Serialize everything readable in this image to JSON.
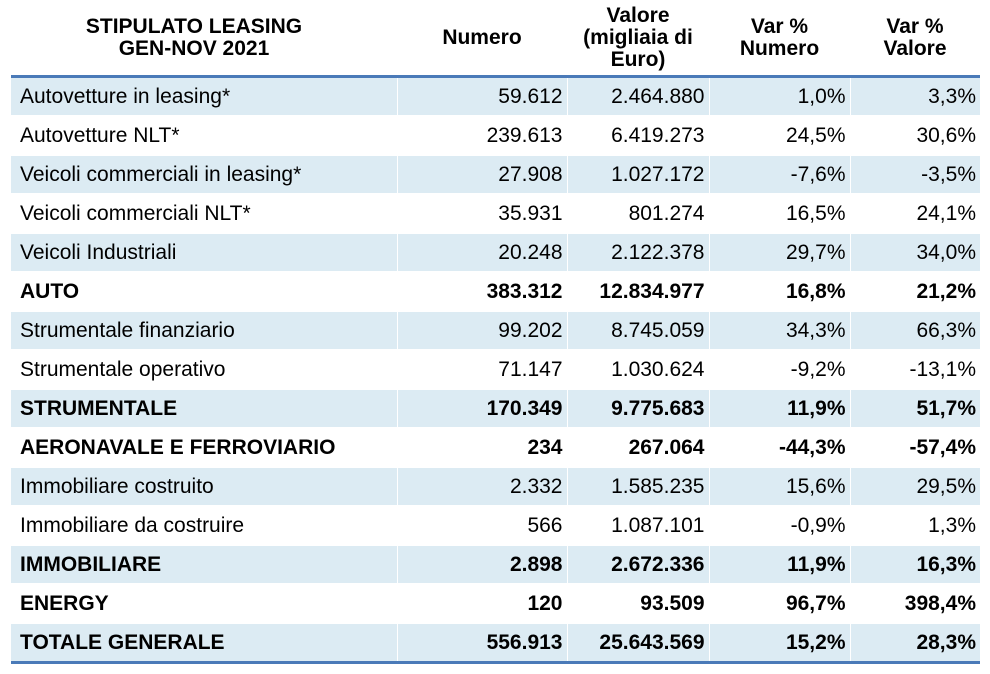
{
  "chart_data": {
    "type": "table",
    "columns": [
      "STIPULATO LEASING GEN-NOV 2021",
      "Numero",
      "Valore (migliaia di Euro)",
      "Var % Numero",
      "Var % Valore"
    ],
    "header_lines": [
      [
        "STIPULATO LEASING",
        "GEN-NOV 2021"
      ],
      [
        "Numero"
      ],
      [
        "Valore",
        "(migliaia di",
        "Euro)"
      ],
      [
        "Var %",
        "Numero"
      ],
      [
        "Var %",
        "Valore"
      ]
    ],
    "rows": [
      {
        "label": "Autovetture in leasing*",
        "numero": "59.612",
        "valore": "2.464.880",
        "var_numero": "1,0%",
        "var_valore": "3,3%",
        "bold": false,
        "shade": true
      },
      {
        "label": "Autovetture NLT*",
        "numero": "239.613",
        "valore": "6.419.273",
        "var_numero": "24,5%",
        "var_valore": "30,6%",
        "bold": false,
        "shade": false
      },
      {
        "label": "Veicoli commerciali in leasing*",
        "numero": "27.908",
        "valore": "1.027.172",
        "var_numero": "-7,6%",
        "var_valore": "-3,5%",
        "bold": false,
        "shade": true
      },
      {
        "label": "Veicoli commerciali NLT*",
        "numero": "35.931",
        "valore": "801.274",
        "var_numero": "16,5%",
        "var_valore": "24,1%",
        "bold": false,
        "shade": false
      },
      {
        "label": "Veicoli Industriali",
        "numero": "20.248",
        "valore": "2.122.378",
        "var_numero": "29,7%",
        "var_valore": "34,0%",
        "bold": false,
        "shade": true
      },
      {
        "label": "AUTO",
        "numero": "383.312",
        "valore": "12.834.977",
        "var_numero": "16,8%",
        "var_valore": "21,2%",
        "bold": true,
        "shade": false
      },
      {
        "label": "Strumentale finanziario",
        "numero": "99.202",
        "valore": "8.745.059",
        "var_numero": "34,3%",
        "var_valore": "66,3%",
        "bold": false,
        "shade": true
      },
      {
        "label": "Strumentale operativo",
        "numero": "71.147",
        "valore": "1.030.624",
        "var_numero": "-9,2%",
        "var_valore": "-13,1%",
        "bold": false,
        "shade": false
      },
      {
        "label": "STRUMENTALE",
        "numero": "170.349",
        "valore": "9.775.683",
        "var_numero": "11,9%",
        "var_valore": "51,7%",
        "bold": true,
        "shade": true
      },
      {
        "label": "AERONAVALE E FERROVIARIO",
        "numero": "234",
        "valore": "267.064",
        "var_numero": "-44,3%",
        "var_valore": "-57,4%",
        "bold": true,
        "shade": false
      },
      {
        "label": "Immobiliare costruito",
        "numero": "2.332",
        "valore": "1.585.235",
        "var_numero": "15,6%",
        "var_valore": "29,5%",
        "bold": false,
        "shade": true
      },
      {
        "label": "Immobiliare da costruire",
        "numero": "566",
        "valore": "1.087.101",
        "var_numero": "-0,9%",
        "var_valore": "1,3%",
        "bold": false,
        "shade": false
      },
      {
        "label": "IMMOBILIARE",
        "numero": "2.898",
        "valore": "2.672.336",
        "var_numero": "11,9%",
        "var_valore": "16,3%",
        "bold": true,
        "shade": true
      },
      {
        "label": "ENERGY",
        "numero": "120",
        "valore": "93.509",
        "var_numero": "96,7%",
        "var_valore": "398,4%",
        "bold": true,
        "shade": false
      },
      {
        "label": "TOTALE GENERALE",
        "numero": "556.913",
        "valore": "25.643.569",
        "var_numero": "15,2%",
        "var_valore": "28,3%",
        "bold": true,
        "shade": true
      }
    ],
    "colors": {
      "shade": "#dcebf3",
      "rule": "#4a7ab8"
    }
  }
}
